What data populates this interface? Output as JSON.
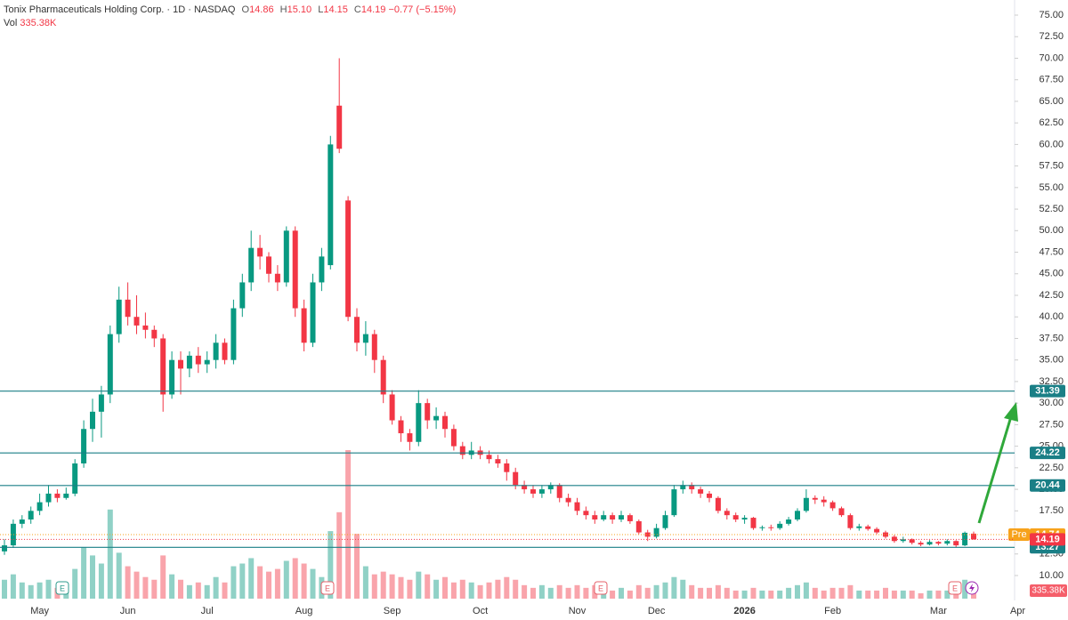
{
  "chart_data": {
    "type": "candlestick",
    "header": {
      "title": "Tonix Pharmaceuticals Holding Corp. · 1D · NASDAQ",
      "o_key": "O",
      "o": "14.86",
      "h_key": "H",
      "h": "15.10",
      "l_key": "L",
      "l": "14.15",
      "c_key": "C",
      "c": "14.19",
      "change": "−0.77 (−5.15%)",
      "vol_key": "Vol",
      "vol": "335.38K"
    },
    "categories": [
      null,
      null,
      null,
      null,
      "May",
      null,
      null,
      null,
      null,
      null,
      null,
      null,
      null,
      null,
      "Jun",
      null,
      null,
      null,
      null,
      null,
      null,
      null,
      null,
      "Jul",
      null,
      null,
      null,
      null,
      null,
      null,
      null,
      null,
      null,
      null,
      "Aug",
      null,
      null,
      null,
      null,
      null,
      null,
      null,
      null,
      null,
      "Sep",
      null,
      null,
      null,
      null,
      null,
      null,
      null,
      null,
      null,
      "Oct",
      null,
      null,
      null,
      null,
      null,
      null,
      null,
      null,
      null,
      null,
      "Nov",
      null,
      null,
      null,
      null,
      null,
      null,
      null,
      null,
      "Dec",
      null,
      null,
      null,
      null,
      null,
      null,
      null,
      null,
      null,
      "2026",
      null,
      null,
      null,
      null,
      null,
      null,
      null,
      null,
      null,
      "Feb",
      null,
      null,
      null,
      null,
      null,
      null,
      null,
      null,
      null,
      null,
      null,
      "Mar",
      null,
      null,
      null,
      null,
      null,
      null,
      null,
      null,
      "Apr"
    ],
    "candles": [
      [
        12.8,
        14.2,
        12.4,
        13.5
      ],
      [
        13.5,
        16.5,
        13.2,
        16
      ],
      [
        16,
        17,
        15.5,
        16.5
      ],
      [
        16.5,
        18,
        16,
        17.5
      ],
      [
        17.5,
        19.5,
        17,
        18.5
      ],
      [
        18.5,
        20.5,
        18,
        19.5
      ],
      [
        19.5,
        20,
        18.5,
        19
      ],
      [
        19,
        20.2,
        18.8,
        19.5
      ],
      [
        19.5,
        23.5,
        19.2,
        23
      ],
      [
        23,
        28,
        22.5,
        27
      ],
      [
        27,
        30.5,
        25.5,
        29
      ],
      [
        29,
        32,
        26,
        31
      ],
      [
        31,
        39,
        30,
        38
      ],
      [
        38,
        43.5,
        37,
        42
      ],
      [
        42,
        44,
        39,
        40
      ],
      [
        40,
        42.5,
        38,
        39
      ],
      [
        39,
        40.5,
        37.5,
        38.5
      ],
      [
        38.5,
        39,
        36.5,
        37.5
      ],
      [
        37.5,
        38,
        29,
        31
      ],
      [
        31,
        36,
        30.5,
        35
      ],
      [
        35,
        36,
        31,
        34
      ],
      [
        34,
        36,
        33,
        35.5
      ],
      [
        35.5,
        36.5,
        33.5,
        34.5
      ],
      [
        34.5,
        36,
        33.5,
        35
      ],
      [
        35,
        38,
        34,
        37
      ],
      [
        37,
        37.5,
        34.5,
        35
      ],
      [
        35,
        42,
        34.5,
        41
      ],
      [
        41,
        45,
        40,
        44
      ],
      [
        44,
        50,
        43,
        48
      ],
      [
        48,
        49.5,
        45.5,
        47
      ],
      [
        47,
        47.5,
        44,
        45
      ],
      [
        45,
        46,
        43,
        44
      ],
      [
        44,
        50.5,
        43.5,
        50
      ],
      [
        50,
        50.5,
        40,
        41
      ],
      [
        41,
        42,
        36,
        37
      ],
      [
        37,
        45,
        36.5,
        44
      ],
      [
        44,
        48,
        43,
        47
      ],
      [
        46,
        61,
        45.5,
        60
      ],
      [
        64.5,
        70,
        59,
        59.5
      ],
      [
        53.5,
        54,
        39.5,
        40
      ],
      [
        40,
        41,
        36,
        37
      ],
      [
        37,
        39.5,
        35.5,
        38
      ],
      [
        38,
        38.5,
        33.5,
        35
      ],
      [
        35,
        35.5,
        30,
        31
      ],
      [
        31,
        31.5,
        27.5,
        28
      ],
      [
        28,
        28.5,
        25.5,
        26.5
      ],
      [
        26.5,
        27,
        24.5,
        25.5
      ],
      [
        25.5,
        31.5,
        25,
        30
      ],
      [
        30,
        30.5,
        27,
        28
      ],
      [
        28,
        29.5,
        27,
        28.5
      ],
      [
        28.5,
        29,
        26,
        27
      ],
      [
        27,
        27.5,
        24.5,
        25
      ],
      [
        25,
        25.5,
        23.5,
        24
      ],
      [
        24,
        25.5,
        23.5,
        24.5
      ],
      [
        24.5,
        25,
        23.5,
        24
      ],
      [
        24,
        24.5,
        23,
        23.5
      ],
      [
        23.5,
        24,
        22.5,
        23
      ],
      [
        23,
        23.5,
        21,
        22
      ],
      [
        22,
        22.5,
        20,
        20.5
      ],
      [
        20.5,
        21,
        19.5,
        20
      ],
      [
        20,
        20.5,
        19,
        19.5
      ],
      [
        19.5,
        20.5,
        19,
        20
      ],
      [
        20,
        20.8,
        19.5,
        20.5
      ],
      [
        20.5,
        20.7,
        18.5,
        19
      ],
      [
        19,
        19.5,
        18,
        18.5
      ],
      [
        18.5,
        19,
        17,
        17.5
      ],
      [
        17.5,
        18,
        16.5,
        17
      ],
      [
        17,
        17.5,
        16,
        16.5
      ],
      [
        16.5,
        17.5,
        16.3,
        17
      ],
      [
        17,
        17.3,
        16,
        16.5
      ],
      [
        16.5,
        17.5,
        16.2,
        17
      ],
      [
        17,
        17.2,
        16,
        16.3
      ],
      [
        16.3,
        16.5,
        14.8,
        15
      ],
      [
        15,
        15.3,
        14,
        14.5
      ],
      [
        14.5,
        16,
        14.3,
        15.5
      ],
      [
        15.5,
        17.5,
        15.3,
        17
      ],
      [
        17,
        20.5,
        16.8,
        20
      ],
      [
        20,
        21,
        19.5,
        20.5
      ],
      [
        20.5,
        20.8,
        19.5,
        20
      ],
      [
        20,
        20.3,
        19,
        19.5
      ],
      [
        19.5,
        19.8,
        18.5,
        19
      ],
      [
        19,
        19.2,
        17.2,
        17.5
      ],
      [
        17.5,
        17.8,
        16.5,
        17
      ],
      [
        17,
        17.3,
        16.2,
        16.5
      ],
      [
        16.5,
        17,
        16,
        16.7
      ],
      [
        16.7,
        16.8,
        15.3,
        15.5
      ],
      [
        15.5,
        15.8,
        15.2,
        15.6
      ],
      [
        15.6,
        15.9,
        15.2,
        15.5
      ],
      [
        15.5,
        16.3,
        15.3,
        16
      ],
      [
        16,
        16.8,
        15.8,
        16.5
      ],
      [
        16.5,
        17.8,
        16.3,
        17.5
      ],
      [
        17.5,
        20,
        17.3,
        19
      ],
      [
        19,
        19.3,
        18.3,
        18.8
      ],
      [
        18.8,
        19.2,
        18,
        18.5
      ],
      [
        18.5,
        18.7,
        17.5,
        17.8
      ],
      [
        17.8,
        18,
        16.8,
        17
      ],
      [
        17,
        17.2,
        15.3,
        15.5
      ],
      [
        15.5,
        16,
        15.2,
        15.7
      ],
      [
        15.7,
        15.9,
        15.2,
        15.4
      ],
      [
        15.4,
        15.6,
        14.8,
        15
      ],
      [
        15,
        15.2,
        14.3,
        14.5
      ],
      [
        14.5,
        14.7,
        13.8,
        14
      ],
      [
        14,
        14.5,
        13.8,
        14.2
      ],
      [
        14.2,
        14.3,
        13.6,
        13.8
      ],
      [
        13.8,
        14,
        13.4,
        13.6
      ],
      [
        13.6,
        14.1,
        13.5,
        13.9
      ],
      [
        13.9,
        14,
        13.5,
        13.7
      ],
      [
        13.7,
        14.2,
        13.5,
        14
      ],
      [
        14,
        14.1,
        13.3,
        13.5
      ],
      [
        13.5,
        15.1,
        13.4,
        14.96
      ],
      [
        14.86,
        15.1,
        14.15,
        14.19
      ],
      null,
      null,
      null,
      null,
      null
    ],
    "volume": [
      700000,
      900000,
      600000,
      500000,
      600000,
      700000,
      400000,
      500000,
      1100000,
      1900000,
      1600000,
      1300000,
      3300000,
      1700000,
      1200000,
      1000000,
      800000,
      700000,
      1600000,
      900000,
      700000,
      500000,
      600000,
      500000,
      800000,
      600000,
      1200000,
      1300000,
      1500000,
      1200000,
      1000000,
      1100000,
      1400000,
      1500000,
      1300000,
      1100000,
      800000,
      2500000,
      3200000,
      5500000,
      2400000,
      1200000,
      900000,
      1000000,
      900000,
      800000,
      700000,
      1000000,
      900000,
      700000,
      800000,
      600000,
      700000,
      600000,
      500000,
      600000,
      700000,
      800000,
      700000,
      500000,
      400000,
      500000,
      400000,
      500000,
      400000,
      500000,
      400000,
      500000,
      400000,
      300000,
      400000,
      300000,
      500000,
      400000,
      500000,
      600000,
      800000,
      700000,
      500000,
      400000,
      400000,
      500000,
      400000,
      300000,
      300000,
      400000,
      300000,
      300000,
      300000,
      400000,
      500000,
      600000,
      400000,
      300000,
      400000,
      400000,
      500000,
      300000,
      300000,
      300000,
      400000,
      300000,
      300000,
      300000,
      200000,
      300000,
      300000,
      300000,
      300000,
      700000,
      335380,
      null,
      null,
      null,
      null,
      null
    ],
    "volume_label": "335.38K",
    "up_color": "#089981",
    "down_color": "#f23645",
    "ylim": [
      10,
      75
    ],
    "yticks": [
      {
        "value": 10,
        "label": "10.00"
      },
      {
        "value": 12.5,
        "label": "12.50"
      },
      {
        "value": 15,
        "label": "15.00"
      },
      {
        "value": 17.5,
        "label": "17.50"
      },
      {
        "value": 20,
        "label": "20.00"
      },
      {
        "value": 22.5,
        "label": "22.50"
      },
      {
        "value": 25,
        "label": "25.00"
      },
      {
        "value": 27.5,
        "label": "27.50"
      },
      {
        "value": 30,
        "label": "30.00"
      },
      {
        "value": 32.5,
        "label": "32.50"
      },
      {
        "value": 35,
        "label": "35.00"
      },
      {
        "value": 37.5,
        "label": "37.50"
      },
      {
        "value": 40,
        "label": "40.00"
      },
      {
        "value": 42.5,
        "label": "42.50"
      },
      {
        "value": 45,
        "label": "45.00"
      },
      {
        "value": 47.5,
        "label": "47.50"
      },
      {
        "value": 50,
        "label": "50.00"
      },
      {
        "value": 52.5,
        "label": "52.50"
      },
      {
        "value": 55,
        "label": "55.00"
      },
      {
        "value": 57.5,
        "label": "57.50"
      },
      {
        "value": 60,
        "label": "60.00"
      },
      {
        "value": 62.5,
        "label": "62.50"
      },
      {
        "value": 65,
        "label": "65.00"
      },
      {
        "value": 67.5,
        "label": "67.50"
      },
      {
        "value": 70,
        "label": "70.00"
      },
      {
        "value": 72.5,
        "label": "72.50"
      },
      {
        "value": 75,
        "label": "75.00"
      }
    ],
    "levels": [
      31.39,
      24.22,
      20.44,
      13.27
    ],
    "level_color": "#1a7f86",
    "pre": {
      "label": "Pre",
      "value": 14.74,
      "color": "#f7a21b"
    },
    "earnings_marker": "E"
  }
}
